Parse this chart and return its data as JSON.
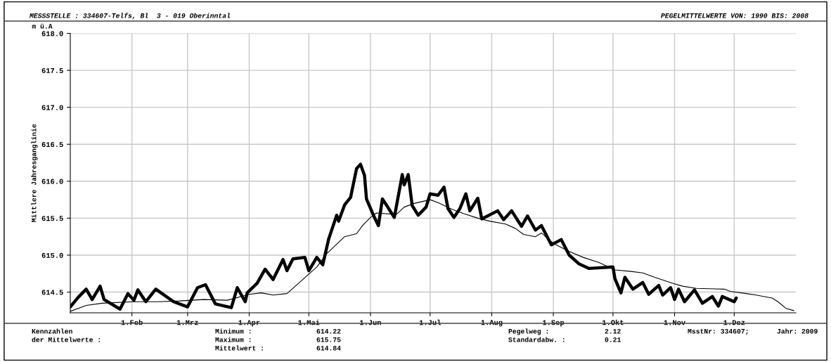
{
  "chart_data": {
    "type": "line",
    "title": "MESSSTELLE : 334607-Telfs, Bl  3 - 019 Oberinntal",
    "subtitle": "PEGELMITTELWERTE VON: 1990 BIS: 2008",
    "ylabel": "Mittlere Jahresganglinie",
    "annotations": [
      "m ü.A",
      "Kennzahlen",
      "der Mittelwerte :",
      "Minimum :",
      "614.22",
      "Maximum :",
      "615.75",
      "Mittelwert :",
      "614.84",
      "Pegelweg :",
      "2.12",
      "Standardabw. :",
      "0.21",
      "MsstNr: 334607;",
      "Jahr: 2009"
    ],
    "series": [
      {
        "color": "#000000",
        "x": [
          "2009-01-01",
          "2009-01-05",
          "2009-01-09",
          "2009-01-12",
          "2009-01-16",
          "2009-01-18",
          "2009-01-26",
          "2009-01-30",
          "2009-02-02",
          "2009-02-04",
          "2009-02-08",
          "2009-02-13",
          "2009-02-22",
          "2009-03-01",
          "2009-03-06",
          "2009-03-10",
          "2009-03-15",
          "2009-03-23",
          "2009-03-26",
          "2009-03-30",
          "2009-03-31",
          "2009-04-05",
          "2009-04-09",
          "2009-04-13",
          "2009-04-18",
          "2009-04-20",
          "2009-04-23",
          "2009-04-29",
          "2009-05-01",
          "2009-05-05",
          "2009-05-08",
          "2009-05-11",
          "2009-05-15",
          "2009-05-16",
          "2009-05-19",
          "2009-05-22",
          "2009-05-25",
          "2009-05-27",
          "2009-05-29",
          "2009-05-30",
          "2009-06-03",
          "2009-06-05",
          "2009-06-07",
          "2009-06-09",
          "2009-06-13",
          "2009-06-17",
          "2009-06-18",
          "2009-06-20",
          "2009-06-22",
          "2009-06-25",
          "2009-06-29",
          "2009-07-01",
          "2009-07-05",
          "2009-07-08",
          "2009-07-10",
          "2009-07-13",
          "2009-07-16",
          "2009-07-19",
          "2009-07-21",
          "2009-07-25",
          "2009-07-27",
          "2009-08-04",
          "2009-08-07",
          "2009-08-11",
          "2009-08-16",
          "2009-08-19",
          "2009-08-23",
          "2009-08-26",
          "2009-08-31",
          "2009-09-05",
          "2009-09-09",
          "2009-09-14",
          "2009-09-19",
          "2009-10-01",
          "2009-10-02",
          "2009-10-05",
          "2009-10-07",
          "2009-10-11",
          "2009-10-16",
          "2009-10-19",
          "2009-10-24",
          "2009-10-26",
          "2009-10-30",
          "2009-11-01",
          "2009-11-03",
          "2009-11-06",
          "2009-11-11",
          "2009-11-15",
          "2009-11-20",
          "2009-11-23",
          "2009-11-25",
          "2009-12-01",
          "2009-12-02"
        ],
        "values": [
          614.3,
          614.43,
          614.54,
          614.4,
          614.58,
          614.4,
          614.27,
          614.48,
          614.39,
          614.53,
          614.37,
          614.54,
          614.37,
          614.3,
          614.56,
          614.6,
          614.34,
          614.29,
          614.56,
          614.37,
          614.49,
          614.62,
          614.81,
          614.67,
          614.94,
          614.79,
          614.95,
          614.97,
          614.79,
          614.97,
          614.87,
          615.22,
          615.54,
          615.46,
          615.68,
          615.78,
          616.17,
          616.23,
          616.08,
          615.76,
          615.51,
          615.4,
          615.76,
          615.68,
          615.51,
          616.09,
          615.95,
          616.09,
          615.67,
          615.54,
          615.65,
          615.83,
          615.81,
          615.92,
          615.63,
          615.51,
          615.63,
          615.83,
          615.6,
          615.77,
          615.49,
          615.6,
          615.48,
          615.6,
          615.39,
          615.53,
          615.34,
          615.4,
          615.14,
          615.21,
          615.0,
          614.88,
          614.82,
          614.84,
          614.68,
          614.49,
          614.7,
          614.54,
          614.63,
          614.47,
          614.59,
          614.46,
          614.56,
          614.4,
          614.54,
          614.37,
          614.53,
          614.35,
          614.44,
          614.31,
          614.44,
          614.37,
          614.42
        ]
      },
      {
        "color": "#000000",
        "x": [
          "2009-01-01",
          "2009-01-09",
          "2009-01-17",
          "2009-02-02",
          "2009-02-14",
          "2009-02-25",
          "2009-03-09",
          "2009-03-21",
          "2009-04-01",
          "2009-04-07",
          "2009-04-13",
          "2009-04-20",
          "2009-04-25",
          "2009-04-30",
          "2009-05-05",
          "2009-05-10",
          "2009-05-19",
          "2009-05-25",
          "2009-05-28",
          "2009-06-01",
          "2009-06-04",
          "2009-06-14",
          "2009-06-18",
          "2009-06-23",
          "2009-07-01",
          "2009-07-05",
          "2009-07-12",
          "2009-07-18",
          "2009-07-25",
          "2009-07-31",
          "2009-08-08",
          "2009-08-13",
          "2009-08-17",
          "2009-08-23",
          "2009-08-26",
          "2009-09-01",
          "2009-09-09",
          "2009-09-16",
          "2009-09-24",
          "2009-10-02",
          "2009-10-10",
          "2009-10-16",
          "2009-10-22",
          "2009-10-31",
          "2009-11-05",
          "2009-11-12",
          "2009-11-26",
          "2009-11-29",
          "2009-12-07",
          "2009-12-12",
          "2009-12-20",
          "2009-12-23",
          "2009-12-27",
          "2009-12-31"
        ],
        "values": [
          614.24,
          614.32,
          614.35,
          614.37,
          614.37,
          614.38,
          614.4,
          614.39,
          614.47,
          614.49,
          614.46,
          614.48,
          614.6,
          614.72,
          614.84,
          615.02,
          615.25,
          615.29,
          615.4,
          615.51,
          615.57,
          615.55,
          615.65,
          615.7,
          615.75,
          615.71,
          615.62,
          615.56,
          615.5,
          615.46,
          615.42,
          615.36,
          615.28,
          615.25,
          615.3,
          615.16,
          615.05,
          614.97,
          614.9,
          614.8,
          614.78,
          614.76,
          614.7,
          614.62,
          614.58,
          614.55,
          614.54,
          614.51,
          614.48,
          614.46,
          614.42,
          614.37,
          614.28,
          614.25
        ]
      }
    ],
    "xlim": [
      "2009-01-01",
      "2010-01-01"
    ],
    "xticks": [
      {
        "value": "2009-02-01",
        "label": "1.Feb"
      },
      {
        "value": "2009-03-01",
        "label": "1.Mrz"
      },
      {
        "value": "2009-04-01",
        "label": "1.Apr"
      },
      {
        "value": "2009-05-01",
        "label": "1.Mai"
      },
      {
        "value": "2009-06-01",
        "label": "1.Jun"
      },
      {
        "value": "2009-07-01",
        "label": "1.Jul"
      },
      {
        "value": "2009-08-01",
        "label": "1.Aug"
      },
      {
        "value": "2009-09-01",
        "label": "1.Sep"
      },
      {
        "value": "2009-10-01",
        "label": "1.Okt"
      },
      {
        "value": "2009-11-01",
        "label": "1.Nov"
      },
      {
        "value": "2009-12-01",
        "label": "1.Dez"
      }
    ],
    "ylim": [
      614.22,
      618.0
    ],
    "yticks": [
      614.5,
      {
        "value": 615,
        "label": "615.0"
      },
      615.5,
      {
        "value": 616,
        "label": "616.0"
      },
      616.5,
      {
        "value": 617,
        "label": "617.0"
      },
      617.5,
      {
        "value": 618,
        "label": "618.0"
      }
    ],
    "grid": true,
    "legend": false,
    "line_style": "solid",
    "marker": "none"
  }
}
